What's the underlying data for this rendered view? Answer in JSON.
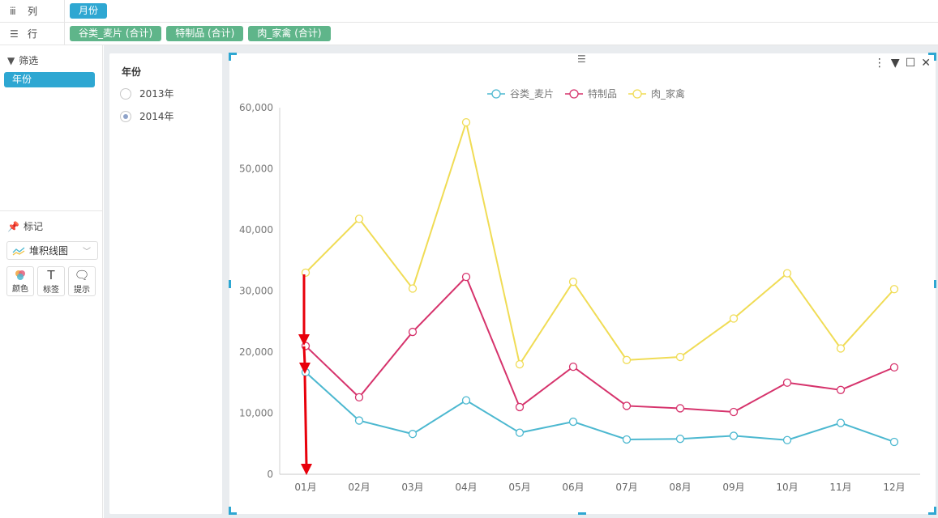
{
  "shelves": {
    "columns": {
      "label": "列",
      "pills": [
        "月份"
      ]
    },
    "rows": {
      "label": "行",
      "pills": [
        "谷类_麦片 (合计)",
        "特制品 (合计)",
        "肉_家禽 (合计)"
      ]
    }
  },
  "filter": {
    "title": "筛选",
    "field": "年份"
  },
  "marks": {
    "title": "标记",
    "chart_type": "堆积线图",
    "buttons": [
      {
        "label": "颜色",
        "icon": "color-icon"
      },
      {
        "label": "标签",
        "icon": "text-icon"
      },
      {
        "label": "提示",
        "icon": "tooltip-icon"
      }
    ]
  },
  "year_filter": {
    "title": "年份",
    "options": [
      {
        "label": "2013年",
        "checked": false
      },
      {
        "label": "2014年",
        "checked": true
      }
    ]
  },
  "colors": {
    "accent": "#2ea7d2",
    "pill_green": "#5fb58a",
    "annotation_arrow": "#e8000b"
  },
  "chart_data": {
    "type": "line",
    "stacked": true,
    "categories": [
      "01月",
      "02月",
      "03月",
      "04月",
      "05月",
      "06月",
      "07月",
      "08月",
      "09月",
      "10月",
      "11月",
      "12月"
    ],
    "series": [
      {
        "name": "谷类_麦片",
        "color": "#4cb8d0",
        "values": [
          16700,
          8800,
          6600,
          12100,
          6800,
          8600,
          5700,
          5800,
          6300,
          5600,
          8400,
          5300
        ]
      },
      {
        "name": "特制品",
        "color": "#d6336c",
        "values": [
          21000,
          12600,
          23300,
          32300,
          11000,
          17600,
          11200,
          10800,
          10200,
          15000,
          13800,
          17500
        ]
      },
      {
        "name": "肉_家禽",
        "color": "#f0dc55",
        "values": [
          33000,
          41800,
          30400,
          57600,
          18000,
          31500,
          18700,
          19200,
          25500,
          32900,
          20600,
          30300
        ]
      }
    ],
    "ylim": [
      0,
      60000
    ],
    "yticks": [
      0,
      10000,
      20000,
      30000,
      40000,
      50000,
      60000
    ],
    "ytick_labels": [
      "0",
      "10,000",
      "20,000",
      "30,000",
      "40,000",
      "50,000",
      "60,000"
    ],
    "legend": "top-center",
    "grid": false
  }
}
